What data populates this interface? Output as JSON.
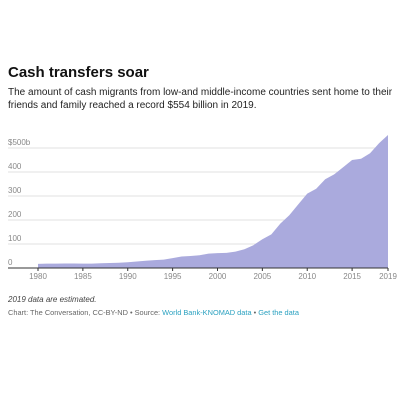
{
  "header": {
    "title": "Cash transfers soar",
    "subtitle": "The amount of cash migrants from low-and middle-income countries sent home to their friends and family reached a record $554 billion in 2019."
  },
  "footer": {
    "note": "2019 data are estimated.",
    "credit_prefix": "Chart: The Conversation, CC-BY-ND • Source: ",
    "source_link": "World Bank-KNOMAD data",
    "separator": " • ",
    "data_link": "Get the data"
  },
  "colors": {
    "area": "#aaaadd",
    "grid": "#e2e2e2",
    "axis": "#333333",
    "tick_text": "#888888",
    "link": "#2aa1c0"
  },
  "chart_data": {
    "type": "area",
    "title": "",
    "xlabel": "",
    "ylabel": "",
    "xlim": [
      1980,
      2019
    ],
    "ylim": [
      0,
      550
    ],
    "grid": true,
    "x_ticks": [
      1980,
      1985,
      1990,
      1995,
      2000,
      2005,
      2010,
      2015,
      2019
    ],
    "y_ticks": [
      0,
      100,
      200,
      300,
      400,
      500
    ],
    "y_tick_labels": [
      "0",
      "100",
      "200",
      "300",
      "400",
      "$500b"
    ],
    "x": [
      1980,
      1981,
      1982,
      1983,
      1984,
      1985,
      1986,
      1987,
      1988,
      1989,
      1990,
      1991,
      1992,
      1993,
      1994,
      1995,
      1996,
      1997,
      1998,
      1999,
      2000,
      2001,
      2002,
      2003,
      2004,
      2005,
      2006,
      2007,
      2008,
      2009,
      2010,
      2011,
      2012,
      2013,
      2014,
      2015,
      2016,
      2017,
      2018,
      2019
    ],
    "series": [
      {
        "values": [
          17,
          18,
          18,
          19,
          19,
          18,
          18,
          20,
          21,
          22,
          24,
          27,
          30,
          33,
          35,
          41,
          48,
          50,
          53,
          60,
          62,
          63,
          68,
          78,
          95,
          120,
          140,
          185,
          220,
          265,
          310,
          330,
          370,
          390,
          420,
          450,
          455,
          478,
          520,
          554
        ]
      }
    ]
  }
}
